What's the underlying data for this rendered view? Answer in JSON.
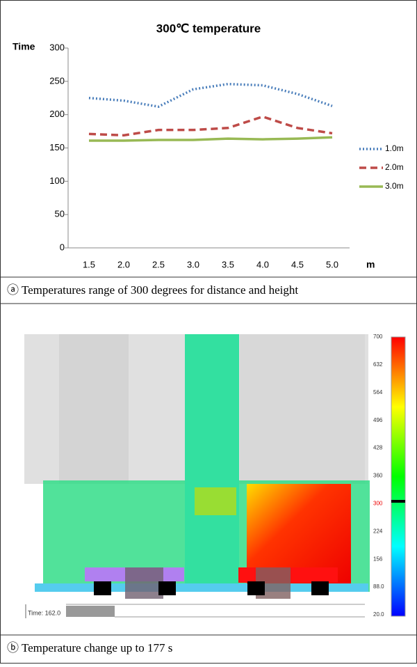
{
  "chart_data": {
    "type": "line",
    "title": "300℃ temperature",
    "y_label": "Time",
    "x_label": "m",
    "categories": [
      "1.5",
      "2.0",
      "2.5",
      "3.0",
      "3.5",
      "4.0",
      "4.5",
      "5.0"
    ],
    "series": [
      {
        "name": "1.0m",
        "color": "#4a7ebb",
        "style": "dotted",
        "values": [
          225,
          221,
          212,
          238,
          246,
          244,
          231,
          213
        ]
      },
      {
        "name": "2.0m",
        "color": "#be4b48",
        "style": "dashed",
        "values": [
          171,
          169,
          177,
          177,
          180,
          197,
          180,
          172
        ]
      },
      {
        "name": "3.0m",
        "color": "#98b954",
        "style": "solid",
        "values": [
          161,
          161,
          162,
          162,
          164,
          163,
          164,
          166
        ]
      }
    ],
    "ylim": [
      0,
      300
    ],
    "yticks": [
      0,
      50,
      100,
      150,
      200,
      250,
      300
    ],
    "grid": false,
    "legend": "right"
  },
  "captions": [
    "ⓐ Temperatures range of 300 degrees for distance and height",
    "ⓑ Temperature change up to 177 s"
  ],
  "simulation": {
    "time_label": "Time: 162.0",
    "colorbar_labels": [
      "700",
      "632",
      "564",
      "496",
      "428",
      "360",
      "300",
      "224",
      "156",
      "88.0",
      "20.0"
    ]
  }
}
